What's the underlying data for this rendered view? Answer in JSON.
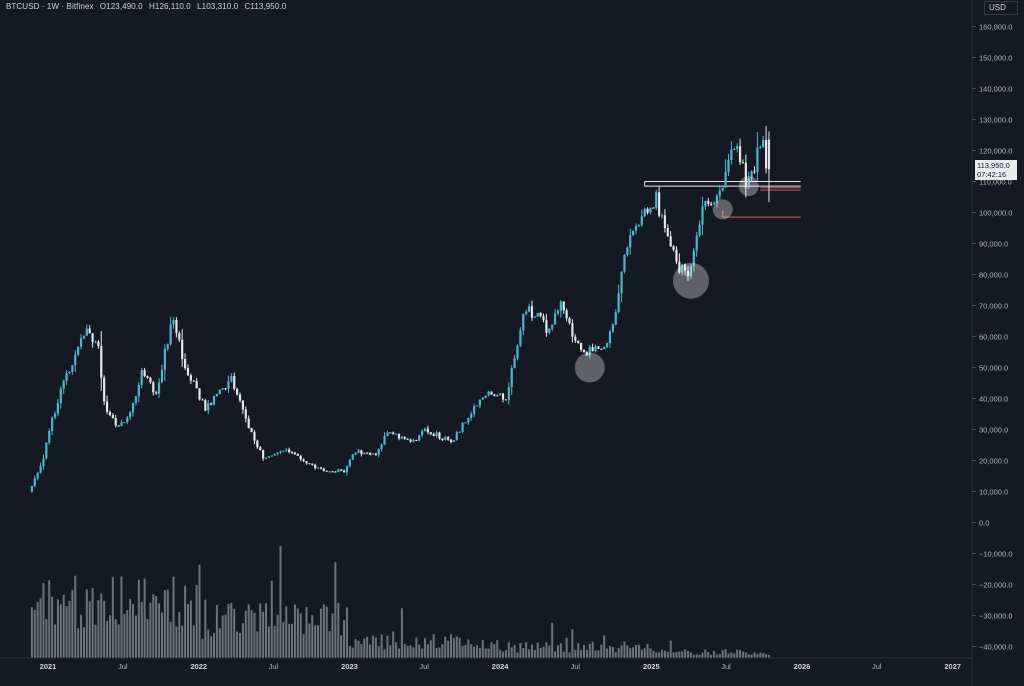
{
  "header": {
    "symbol": "BTCUSD · 1W · Bitfinex",
    "open": "O123,490.0",
    "high": "H126,110.0",
    "low": "L103,310.0",
    "close": "C113,950.0"
  },
  "currency": "USD",
  "current_price": {
    "value": "113,950.0",
    "countdown": "07:42:16"
  },
  "colors": {
    "background": "#151924",
    "up": "#4fb6c8",
    "down": "#e4e6ea",
    "volume": "#b7bcc6",
    "axis_text": "#b2b5be",
    "level_white": "#e6e6e6",
    "level_red": "#e05560",
    "circle": "#ffffff"
  },
  "chart_data": {
    "type": "candlestick",
    "timeframe": "1W",
    "price_axis": {
      "ticks": [
        "160,000.0",
        "150,000.0",
        "140,000.0",
        "130,000.0",
        "120,000.0",
        "110,000.0",
        "100,000.0",
        "90,000.0",
        "80,000.0",
        "70,000.0",
        "60,000.0",
        "50,000.0",
        "40,000.0",
        "30,000.0",
        "20,000.0",
        "10,000.0",
        "0.0",
        "−10,000.0",
        "−20,000.0",
        "−30,000.0",
        "−40,000.0"
      ],
      "tick_values": [
        160000,
        150000,
        140000,
        130000,
        120000,
        110000,
        100000,
        90000,
        80000,
        70000,
        60000,
        50000,
        40000,
        30000,
        20000,
        10000,
        0,
        -10000,
        -20000,
        -30000,
        -40000
      ]
    },
    "time_axis": {
      "labels": [
        "2021",
        "Jul",
        "2022",
        "Jul",
        "2023",
        "Jul",
        "2024",
        "Jul",
        "2025",
        "Jul",
        "2026",
        "Jul",
        "2027"
      ],
      "bold": [
        true,
        false,
        true,
        false,
        true,
        false,
        true,
        false,
        true,
        false,
        true,
        false,
        true
      ],
      "dates": [
        "2021-01-01",
        "2021-07-01",
        "2022-01-01",
        "2022-07-01",
        "2023-01-01",
        "2023-07-01",
        "2024-01-01",
        "2024-07-01",
        "2025-01-01",
        "2025-07-01",
        "2026-01-01",
        "2026-07-01",
        "2027-01-01"
      ]
    },
    "price_path": [
      [
        "2020-11-23",
        10000
      ],
      [
        "2020-12-28",
        20000
      ],
      [
        "2021-01-11",
        30000
      ],
      [
        "2021-02-15",
        45000
      ],
      [
        "2021-04-12",
        62000
      ],
      [
        "2021-05-10",
        56000
      ],
      [
        "2021-05-24",
        38000
      ],
      [
        "2021-06-21",
        31000
      ],
      [
        "2021-07-19",
        33000
      ],
      [
        "2021-08-23",
        48000
      ],
      [
        "2021-09-27",
        42000
      ],
      [
        "2021-11-08",
        67000
      ],
      [
        "2021-12-06",
        50000
      ],
      [
        "2022-01-24",
        37000
      ],
      [
        "2022-03-28",
        46000
      ],
      [
        "2022-05-09",
        31000
      ],
      [
        "2022-06-13",
        21000
      ],
      [
        "2022-08-08",
        24000
      ],
      [
        "2022-09-26",
        19000
      ],
      [
        "2022-11-07",
        17000
      ],
      [
        "2022-12-26",
        16500
      ],
      [
        "2023-01-23",
        23000
      ],
      [
        "2023-03-13",
        22000
      ],
      [
        "2023-04-10",
        29000
      ],
      [
        "2023-06-12",
        26000
      ],
      [
        "2023-07-10",
        30000
      ],
      [
        "2023-09-11",
        26000
      ],
      [
        "2023-10-23",
        34000
      ],
      [
        "2023-12-04",
        42000
      ],
      [
        "2024-01-22",
        40000
      ],
      [
        "2024-02-26",
        62000
      ],
      [
        "2024-03-11",
        70000
      ],
      [
        "2024-05-06",
        62000
      ],
      [
        "2024-06-03",
        70000
      ],
      [
        "2024-07-08",
        58000
      ],
      [
        "2024-08-05",
        55000
      ],
      [
        "2024-09-09",
        56000
      ],
      [
        "2024-10-07",
        63000
      ],
      [
        "2024-11-11",
        90000
      ],
      [
        "2024-12-16",
        100000
      ],
      [
        "2025-01-20",
        104000
      ],
      [
        "2025-02-24",
        87000
      ],
      [
        "2025-04-07",
        78000
      ],
      [
        "2025-05-12",
        103000
      ],
      [
        "2025-06-16",
        103000
      ],
      [
        "2025-07-14",
        118000
      ],
      [
        "2025-08-11",
        118000
      ],
      [
        "2025-08-25",
        110000
      ],
      [
        "2025-09-15",
        116000
      ],
      [
        "2025-10-06",
        123500
      ],
      [
        "2025-10-13",
        113950
      ]
    ],
    "last_candle": {
      "open": 123490,
      "high": 126110,
      "low": 103310,
      "close": 113950
    },
    "horizontal_levels": [
      {
        "price": 110000,
        "start": "2024-12-16",
        "end": "2025-12-29",
        "color": "white"
      },
      {
        "price": 108500,
        "start": "2024-12-16",
        "end": "2025-12-29",
        "color": "white"
      },
      {
        "price": 107200,
        "start": "2025-09-22",
        "end": "2025-12-29",
        "color": "red"
      },
      {
        "price": 108000,
        "start": "2025-09-22",
        "end": "2025-12-29",
        "color": "red"
      },
      {
        "price": 98500,
        "start": "2025-06-23",
        "end": "2025-12-29",
        "color": "red"
      }
    ],
    "highlight_circles": [
      {
        "date": "2024-08-05",
        "price": 50000,
        "size": "medium"
      },
      {
        "date": "2025-04-07",
        "price": 78000,
        "size": "large"
      },
      {
        "date": "2025-06-23",
        "price": 101000,
        "size": "small"
      },
      {
        "date": "2025-08-25",
        "price": 108500,
        "size": "small"
      }
    ],
    "volume_profile": "relative weekly volume bars along bottom of pane"
  }
}
